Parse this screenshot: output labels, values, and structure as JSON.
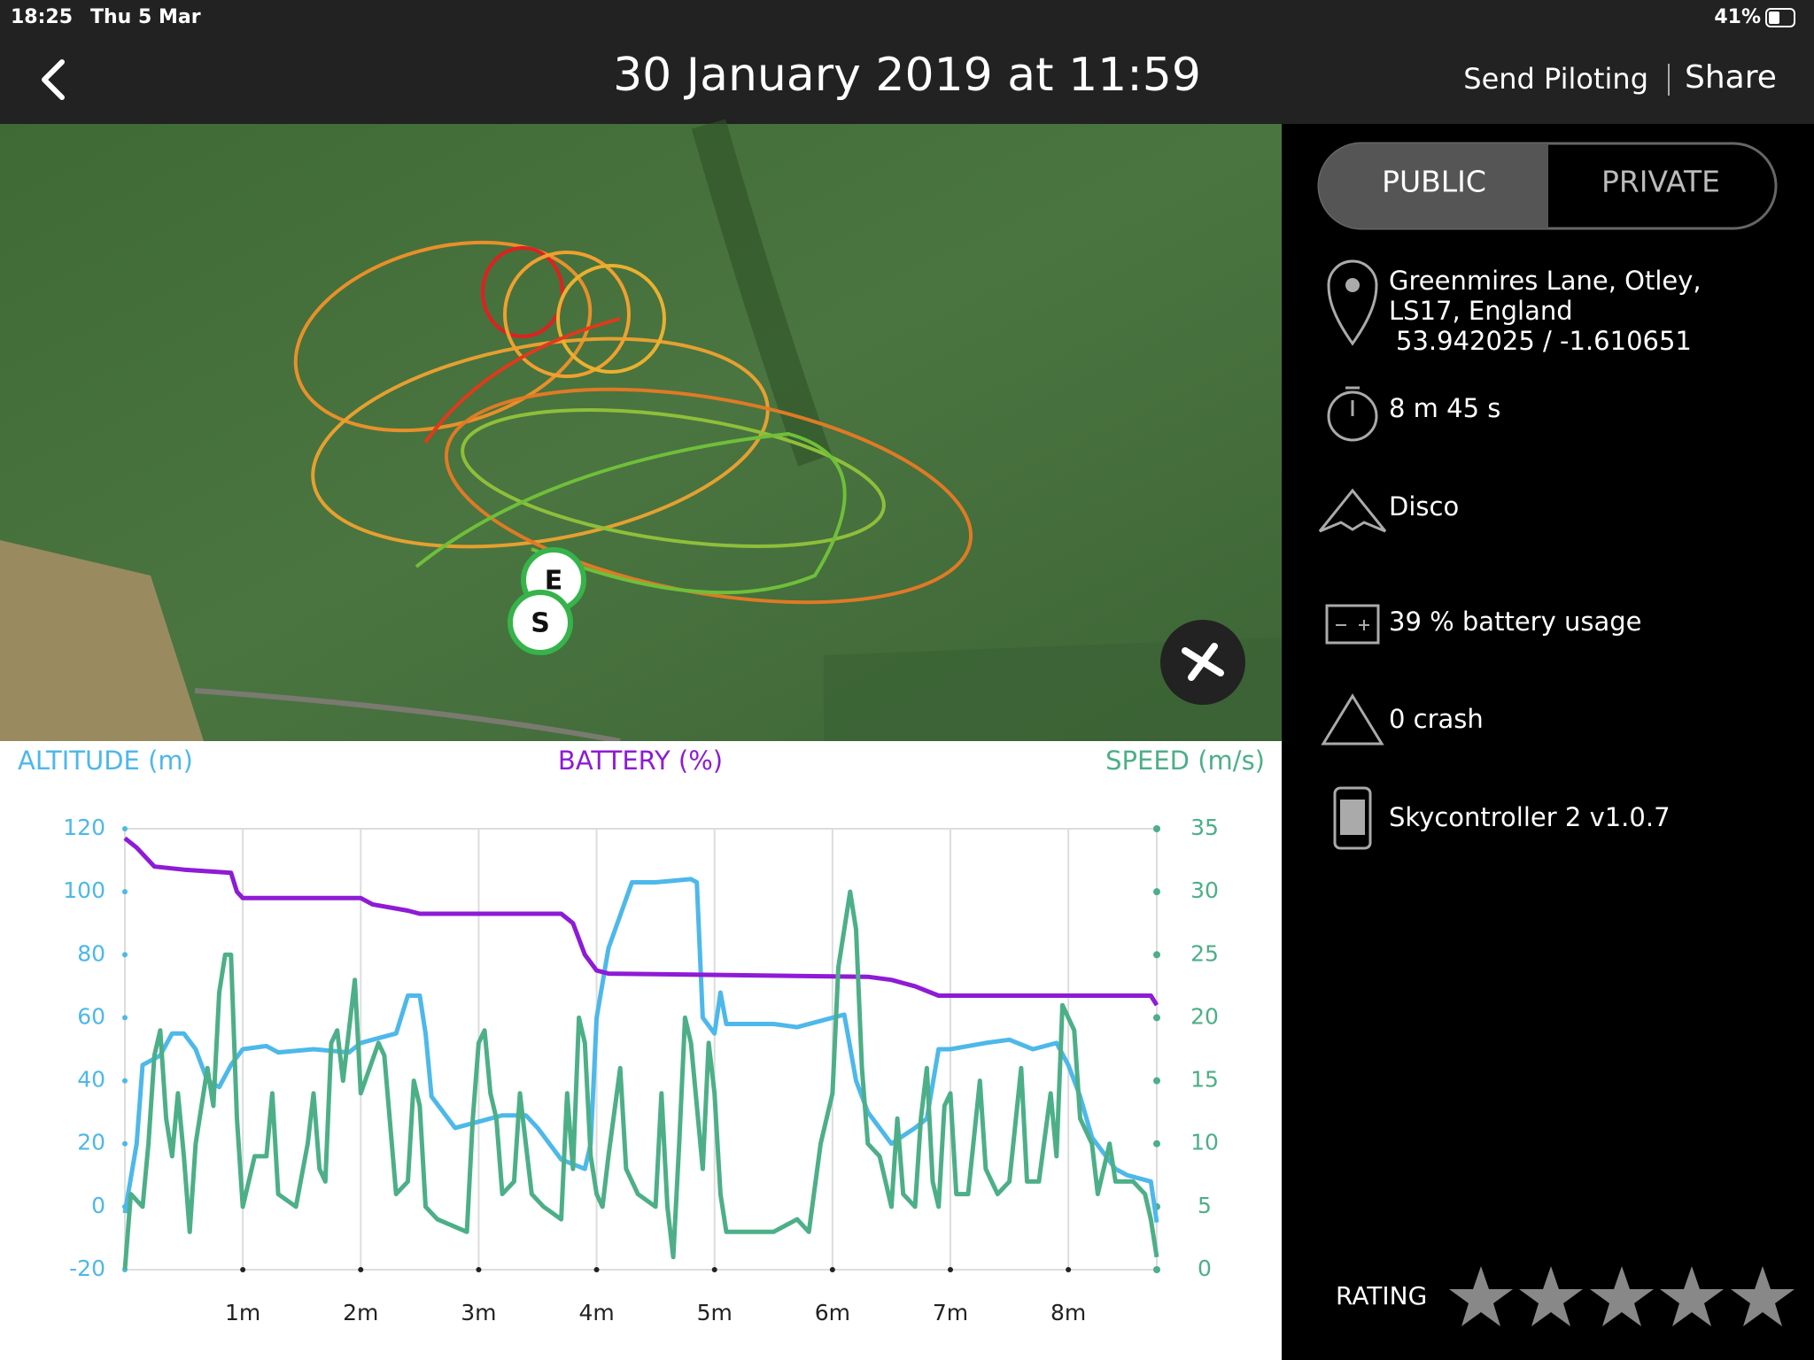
{
  "status_bar": {
    "time": "18:25",
    "date": "Thu 5 Mar",
    "battery": "41%"
  },
  "header": {
    "title": "30 January 2019 at 11:59",
    "actions": [
      "Send Piloting",
      "Share"
    ]
  },
  "map": {
    "start_marker": "S",
    "end_marker": "E"
  },
  "visibility": {
    "options": [
      "PUBLIC",
      "PRIVATE"
    ]
  },
  "details": {
    "location": [
      "Greenmires Lane, Otley,",
      "LS17, England",
      "53.942025 / -1.610651"
    ],
    "duration": "8 m 45 s",
    "drone": "Disco",
    "battery_usage": "39 % battery usage",
    "crashes": "0 crash",
    "controller": "Skycontroller 2 v1.0.7"
  },
  "rating": {
    "label": "RATING"
  },
  "chart_data": {
    "type": "line",
    "xlim": [
      0,
      8.75
    ],
    "xticks": [
      {
        "value": 1,
        "label": "1m"
      },
      {
        "value": 2,
        "label": "2m"
      },
      {
        "value": 3,
        "label": "3m"
      },
      {
        "value": 4,
        "label": "4m"
      },
      {
        "value": 5,
        "label": "5m"
      },
      {
        "value": 6,
        "label": "6m"
      },
      {
        "value": 7,
        "label": "7m"
      },
      {
        "value": 8,
        "label": "8m"
      }
    ],
    "ylim": [
      -20,
      120
    ],
    "yticks": [
      -20,
      0,
      20,
      40,
      60,
      80,
      100,
      120
    ],
    "y2lim": [
      0,
      35
    ],
    "y2ticks": [
      0,
      5,
      10,
      15,
      20,
      25,
      30,
      35
    ],
    "grid": true,
    "series": [
      {
        "name": "ALTITUDE (m)",
        "color": "#4db8ea",
        "axis": "y",
        "x": [
          0,
          0.1,
          0.15,
          0.3,
          0.4,
          0.5,
          0.6,
          0.7,
          0.8,
          0.9,
          1.0,
          1.2,
          1.3,
          1.6,
          1.9,
          2.0,
          2.1,
          2.3,
          2.4,
          2.5,
          2.55,
          2.6,
          2.8,
          3.0,
          3.2,
          3.4,
          3.5,
          3.7,
          3.9,
          3.95,
          4.0,
          4.1,
          4.3,
          4.5,
          4.8,
          4.85,
          4.9,
          5.0,
          5.05,
          5.1,
          5.5,
          5.7,
          6.0,
          6.1,
          6.2,
          6.3,
          6.5,
          6.7,
          6.8,
          6.9,
          7.0,
          7.3,
          7.5,
          7.7,
          7.9,
          8.0,
          8.1,
          8.2,
          8.4,
          8.5,
          8.7,
          8.75
        ],
        "values": [
          -2,
          20,
          45,
          48,
          55,
          55,
          50,
          40,
          38,
          45,
          50,
          51,
          49,
          50,
          49,
          52,
          53,
          55,
          67,
          67,
          55,
          35,
          25,
          27,
          29,
          29,
          25,
          15,
          12,
          20,
          60,
          82,
          103,
          103,
          104,
          103,
          60,
          55,
          68,
          58,
          58,
          57,
          60,
          61,
          40,
          30,
          20,
          25,
          28,
          50,
          50,
          52,
          53,
          50,
          52,
          45,
          35,
          22,
          12,
          10,
          8,
          -5
        ]
      },
      {
        "name": "BATTERY (%)",
        "color": "#8e1bd6",
        "axis": "y",
        "x": [
          0,
          0.1,
          0.25,
          0.5,
          0.9,
          0.95,
          1.0,
          2.0,
          2.1,
          2.4,
          2.5,
          3.7,
          3.8,
          3.9,
          4.0,
          4.1,
          6.3,
          6.5,
          6.7,
          6.9,
          8.7,
          8.75
        ],
        "values": [
          117,
          114,
          108,
          107,
          106,
          100,
          98,
          98,
          96,
          94,
          93,
          93,
          90,
          80,
          75,
          74,
          73,
          72,
          70,
          67,
          67,
          64
        ]
      },
      {
        "name": "SPEED (m/s)",
        "color": "#4caf88",
        "axis": "y2",
        "x": [
          0,
          0.05,
          0.15,
          0.2,
          0.25,
          0.3,
          0.35,
          0.4,
          0.45,
          0.5,
          0.55,
          0.6,
          0.7,
          0.75,
          0.8,
          0.85,
          0.9,
          0.95,
          1.0,
          1.1,
          1.2,
          1.25,
          1.3,
          1.45,
          1.55,
          1.6,
          1.65,
          1.7,
          1.75,
          1.8,
          1.85,
          1.95,
          2.0,
          2.15,
          2.2,
          2.3,
          2.4,
          2.45,
          2.5,
          2.55,
          2.65,
          2.9,
          2.95,
          3.0,
          3.05,
          3.1,
          3.15,
          3.2,
          3.3,
          3.35,
          3.45,
          3.55,
          3.7,
          3.75,
          3.8,
          3.85,
          3.9,
          3.95,
          4.0,
          4.05,
          4.1,
          4.2,
          4.25,
          4.35,
          4.5,
          4.55,
          4.6,
          4.65,
          4.7,
          4.75,
          4.8,
          4.9,
          4.95,
          5.0,
          5.05,
          5.1,
          5.3,
          5.5,
          5.7,
          5.8,
          5.9,
          6.0,
          6.05,
          6.15,
          6.2,
          6.25,
          6.3,
          6.4,
          6.5,
          6.55,
          6.6,
          6.7,
          6.75,
          6.8,
          6.85,
          6.9,
          6.95,
          7.0,
          7.05,
          7.15,
          7.25,
          7.3,
          7.4,
          7.5,
          7.6,
          7.65,
          7.75,
          7.85,
          7.9,
          7.95,
          8.05,
          8.1,
          8.2,
          8.25,
          8.35,
          8.4,
          8.55,
          8.65,
          8.7,
          8.75
        ],
        "values": [
          0,
          6,
          5,
          10,
          17,
          19,
          12,
          9,
          14,
          9,
          3,
          10,
          16,
          13,
          22,
          25,
          25,
          12,
          5,
          9,
          9,
          14,
          6,
          5,
          10,
          14,
          8,
          7,
          18,
          19,
          15,
          23,
          14,
          18,
          17,
          6,
          7,
          15,
          13,
          5,
          4,
          3,
          12,
          18,
          19,
          14,
          12,
          6,
          7,
          14,
          6,
          5,
          4,
          14,
          8,
          20,
          18,
          9,
          6,
          5,
          9,
          16,
          8,
          6,
          5,
          14,
          5,
          1,
          10,
          20,
          18,
          8,
          18,
          14,
          6,
          3,
          3,
          3,
          4,
          3,
          10,
          14,
          24,
          30,
          27,
          16,
          10,
          9,
          5,
          12,
          6,
          5,
          12,
          16,
          7,
          5,
          13,
          14,
          6,
          6,
          15,
          8,
          6,
          7,
          16,
          7,
          7,
          14,
          9,
          21,
          19,
          12,
          10,
          6,
          10,
          7,
          7,
          6,
          4,
          1
        ]
      }
    ]
  }
}
